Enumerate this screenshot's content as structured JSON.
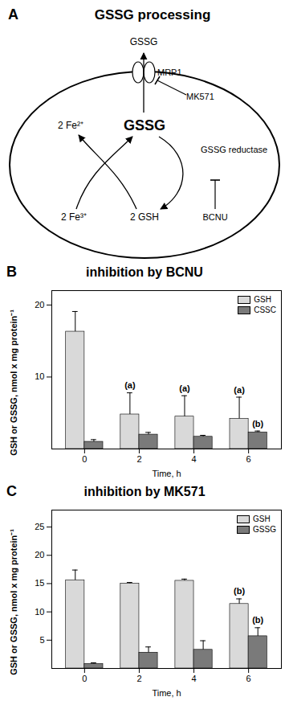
{
  "diagram": {
    "panel_label": "A",
    "title": "GSSG processing",
    "labels": {
      "exported": "GSSG",
      "transporter": "MRP1",
      "transporter_inhibitor": "MK571",
      "fe2": "2 Fe²⁺",
      "gssg": "GSSG",
      "fe3": "2 Fe³⁺",
      "gsh": "2 GSH",
      "enzyme": "GSSG reductase",
      "enzyme_inhibitor": "BCNU"
    }
  },
  "chart_data": [
    {
      "type": "bar",
      "panel_label": "B",
      "title": "inhibition by BCNU",
      "ylabel": "GSH or GSSG, nmol x mg protein⁻¹",
      "xlabel": "Time, h",
      "categories": [
        0,
        2,
        4,
        6
      ],
      "series": [
        {
          "name": "GSH",
          "color": "#d9d9d9",
          "values": [
            16.3,
            4.8,
            4.5,
            4.2
          ],
          "errors": [
            2.8,
            3.0,
            2.9,
            3.0
          ]
        },
        {
          "name": "CSSC",
          "color": "#7a7a7a",
          "values": [
            1.0,
            2.0,
            1.7,
            2.3
          ],
          "errors": [
            0.3,
            0.3,
            0.2,
            0.2
          ]
        }
      ],
      "ylim": [
        0,
        22
      ],
      "yticks": [
        10,
        20
      ],
      "legend": "top-right",
      "annotations": [
        {
          "text": "(a)",
          "category": 2,
          "series": "GSH"
        },
        {
          "text": "(a)",
          "category": 4,
          "series": "GSH"
        },
        {
          "text": "(a)",
          "category": 6,
          "series": "GSH"
        },
        {
          "text": "(b)",
          "category": 6,
          "series": "CSSC"
        }
      ]
    },
    {
      "type": "bar",
      "panel_label": "C",
      "title": "inhibition by MK571",
      "ylabel": "GSH or GSSG, nmol x mg protein⁻¹",
      "xlabel": "Time, h",
      "categories": [
        0,
        2,
        4,
        6
      ],
      "series": [
        {
          "name": "GSH",
          "color": "#d9d9d9",
          "values": [
            15.6,
            15.0,
            15.5,
            11.4
          ],
          "errors": [
            1.8,
            0.2,
            0.3,
            0.9
          ]
        },
        {
          "name": "GSSG",
          "color": "#7a7a7a",
          "values": [
            0.8,
            2.8,
            3.3,
            5.7
          ],
          "errors": [
            0.2,
            1.0,
            1.6,
            1.5
          ]
        }
      ],
      "ylim": [
        0,
        28
      ],
      "yticks": [
        5,
        10,
        15,
        20,
        25
      ],
      "legend": "top-right",
      "annotations": [
        {
          "text": "(b)",
          "category": 6,
          "series": "GSH"
        },
        {
          "text": "(b)",
          "category": 6,
          "series": "GSSG"
        }
      ]
    }
  ]
}
